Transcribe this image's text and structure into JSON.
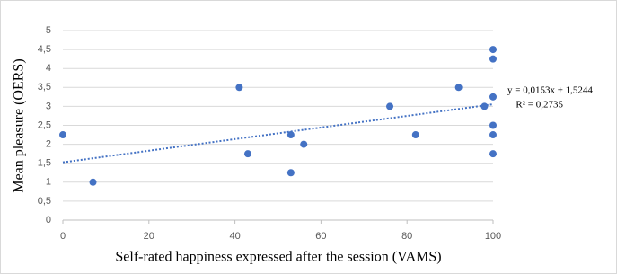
{
  "chart_data": {
    "type": "scatter",
    "x_label": "Self-rated happiness expressed after the session (VAMS)",
    "y_label": "Mean pleasure (OERS)",
    "color": "#4472c4",
    "x": [
      0,
      7,
      41,
      43,
      53,
      53,
      56,
      76,
      82,
      92,
      98,
      100,
      100,
      100,
      100,
      100,
      100
    ],
    "values": [
      2.25,
      1,
      3.5,
      1.75,
      2.25,
      1.25,
      2,
      3,
      2.25,
      3.5,
      3,
      4.5,
      4.25,
      3.25,
      2.5,
      2.25,
      1.75
    ],
    "xlim": [
      0,
      100
    ],
    "xticks": [
      0,
      20,
      40,
      60,
      80,
      100
    ],
    "ylim": [
      0,
      5
    ],
    "yticks": [
      0,
      {
        "value": 0.5,
        "label": "0,5"
      },
      1,
      {
        "value": 1.5,
        "label": "1,5"
      },
      2,
      {
        "value": 2.5,
        "label": "2,5"
      },
      3,
      {
        "value": 3.5,
        "label": "3,5"
      },
      4,
      {
        "value": 4.5,
        "label": "4,5"
      },
      5
    ],
    "grid": true,
    "trendline": {
      "slope": 0.0153,
      "intercept": 1.5244,
      "label": "y = 0,0153x + 1,5244",
      "r2_label": "R² = 0,2735"
    }
  }
}
